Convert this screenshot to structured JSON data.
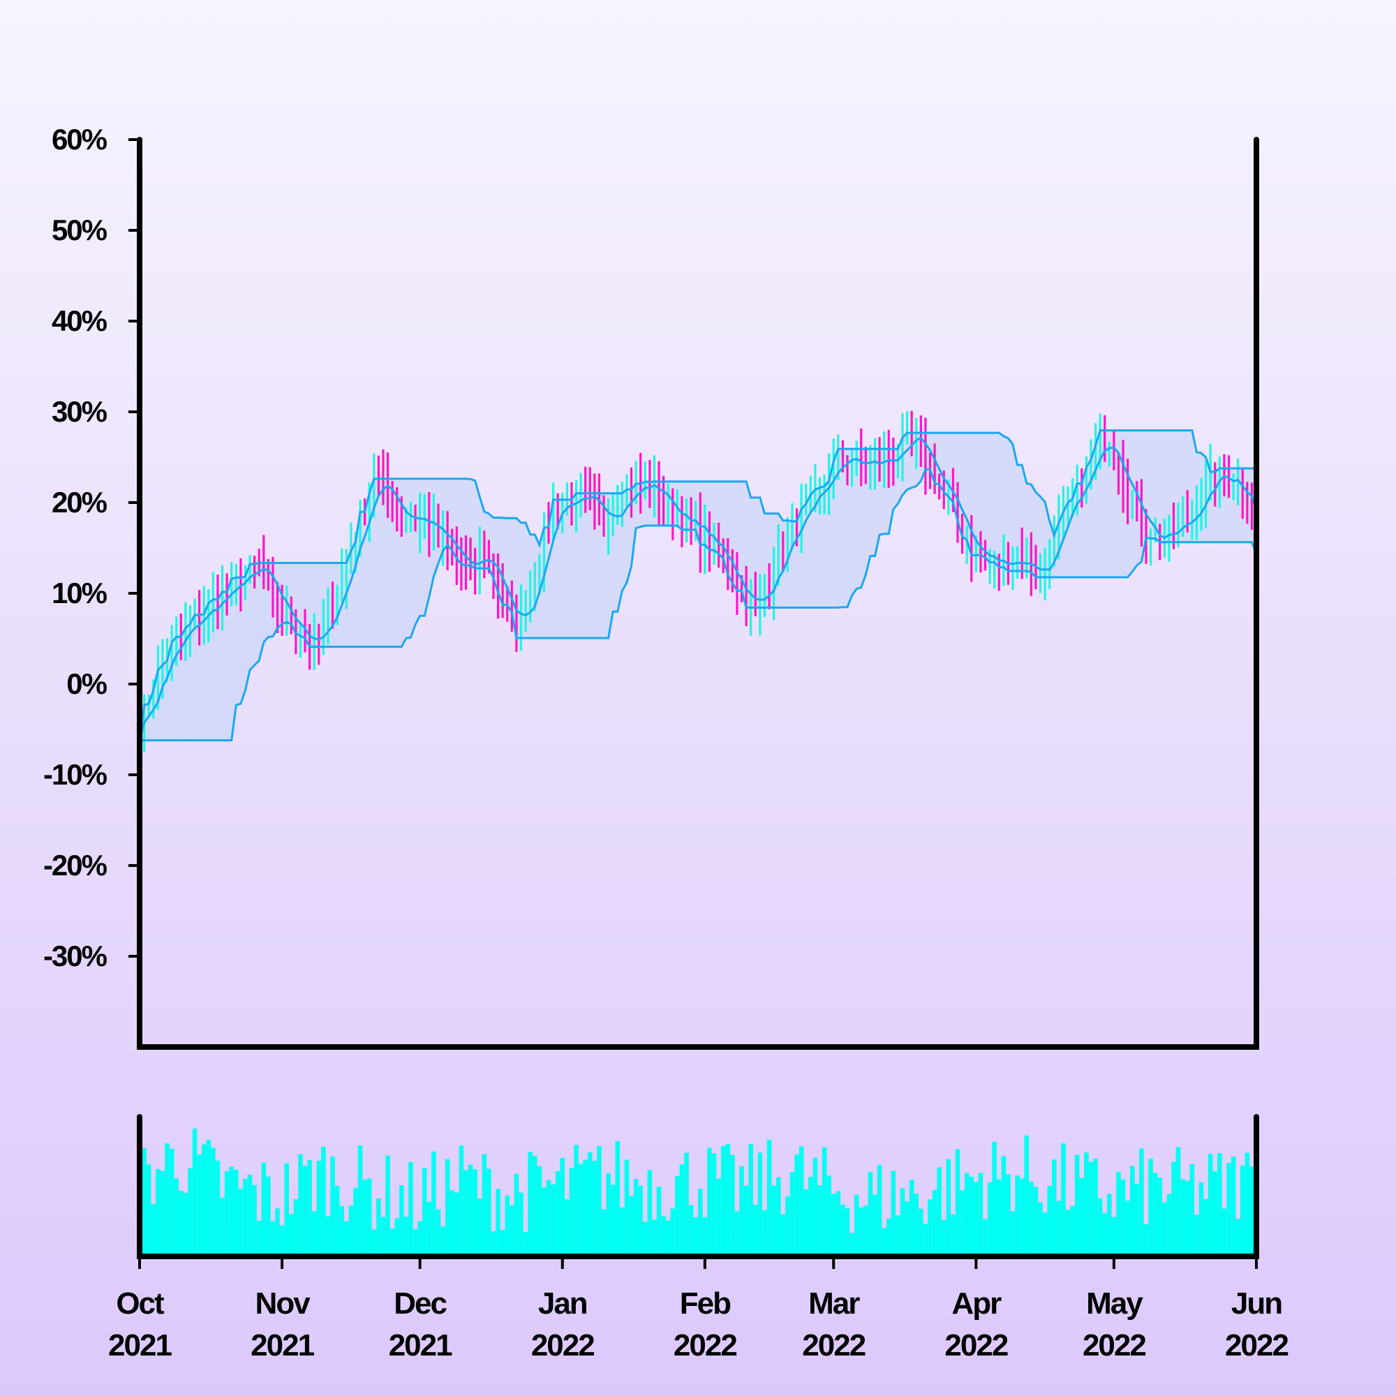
{
  "chart_data": {
    "type": "ohlc",
    "y_ticks": [
      "60%",
      "50%",
      "40%",
      "30%",
      "20%",
      "10%",
      "0%",
      "-10%",
      "-20%",
      "-30%"
    ],
    "y_tick_values": [
      60,
      50,
      40,
      30,
      20,
      10,
      0,
      -10,
      -20,
      -30
    ],
    "ylim": [
      -40,
      60
    ],
    "x_ticks": [
      {
        "month": "Oct",
        "year": "2021",
        "date": "2021-10-01"
      },
      {
        "month": "Nov",
        "year": "2021",
        "date": "2021-11-01"
      },
      {
        "month": "Dec",
        "year": "2021",
        "date": "2021-12-01"
      },
      {
        "month": "Jan",
        "year": "2022",
        "date": "2022-01-01"
      },
      {
        "month": "Feb",
        "year": "2022",
        "date": "2022-02-01"
      },
      {
        "month": "Mar",
        "year": "2022",
        "date": "2022-03-01"
      },
      {
        "month": "Apr",
        "year": "2022",
        "date": "2022-04-01"
      },
      {
        "month": "May",
        "year": "2022",
        "date": "2022-05-01"
      },
      {
        "month": "Jun",
        "year": "2022",
        "date": "2022-06-01"
      }
    ],
    "xlim": [
      "2021-10-01",
      "2022-06-01"
    ],
    "grid": false,
    "colors": {
      "up": "#1ff5e4",
      "down": "#ff14c8",
      "band_line": "#1aa8f0",
      "band_fill": "#c9d6f8",
      "volume": "#00fff2",
      "axis": "#000000"
    },
    "price_anchors": [
      [
        "2021-10-01",
        -5
      ],
      [
        "2021-10-04",
        0
      ],
      [
        "2021-10-08",
        4
      ],
      [
        "2021-10-15",
        8
      ],
      [
        "2021-10-22",
        11
      ],
      [
        "2021-10-27",
        13
      ],
      [
        "2021-10-30",
        9
      ],
      [
        "2021-11-03",
        7
      ],
      [
        "2021-11-08",
        4
      ],
      [
        "2021-11-11",
        7
      ],
      [
        "2021-11-18",
        18
      ],
      [
        "2021-11-21",
        23
      ],
      [
        "2021-11-26",
        19
      ],
      [
        "2021-12-02",
        18
      ],
      [
        "2021-12-07",
        15
      ],
      [
        "2021-12-12",
        12
      ],
      [
        "2021-12-15",
        15
      ],
      [
        "2021-12-19",
        9
      ],
      [
        "2021-12-22",
        6
      ],
      [
        "2021-12-26",
        12
      ],
      [
        "2021-12-30",
        20
      ],
      [
        "2022-01-06",
        20
      ],
      [
        "2022-01-10",
        18
      ],
      [
        "2022-01-14",
        21
      ],
      [
        "2022-01-20",
        22
      ],
      [
        "2022-01-25",
        19
      ],
      [
        "2022-01-30",
        17
      ],
      [
        "2022-02-03",
        15
      ],
      [
        "2022-02-08",
        11
      ],
      [
        "2022-02-12",
        8
      ],
      [
        "2022-02-16",
        13
      ],
      [
        "2022-02-20",
        17
      ],
      [
        "2022-02-26",
        21
      ],
      [
        "2022-03-02",
        25
      ],
      [
        "2022-03-08",
        24
      ],
      [
        "2022-03-14",
        25
      ],
      [
        "2022-03-18",
        27
      ],
      [
        "2022-03-23",
        23
      ],
      [
        "2022-03-27",
        19
      ],
      [
        "2022-03-31",
        15
      ],
      [
        "2022-04-05",
        13
      ],
      [
        "2022-04-10",
        14
      ],
      [
        "2022-04-15",
        12
      ],
      [
        "2022-04-19",
        17
      ],
      [
        "2022-04-24",
        22
      ],
      [
        "2022-04-28",
        27
      ],
      [
        "2022-05-01",
        26
      ],
      [
        "2022-05-04",
        21
      ],
      [
        "2022-05-08",
        17
      ],
      [
        "2022-05-12",
        16
      ],
      [
        "2022-05-17",
        18
      ],
      [
        "2022-05-21",
        22
      ],
      [
        "2022-05-25",
        23
      ],
      [
        "2022-05-28",
        22
      ],
      [
        "2022-05-31",
        20
      ],
      [
        "2022-06-01",
        14
      ]
    ],
    "volume_anchors": [
      [
        "2021-10-01",
        55
      ],
      [
        "2021-10-10",
        72
      ],
      [
        "2021-10-20",
        50
      ],
      [
        "2021-10-31",
        42
      ],
      [
        "2021-11-10",
        60
      ],
      [
        "2021-11-20",
        48
      ],
      [
        "2021-11-30",
        40
      ],
      [
        "2021-12-10",
        55
      ],
      [
        "2021-12-20",
        45
      ],
      [
        "2021-12-31",
        50
      ],
      [
        "2022-01-10",
        58
      ],
      [
        "2022-01-20",
        52
      ],
      [
        "2022-01-31",
        55
      ],
      [
        "2022-02-10",
        50
      ],
      [
        "2022-02-20",
        60
      ],
      [
        "2022-02-28",
        48
      ],
      [
        "2022-03-10",
        42
      ],
      [
        "2022-03-20",
        45
      ],
      [
        "2022-03-31",
        55
      ],
      [
        "2022-04-10",
        60
      ],
      [
        "2022-04-20",
        52
      ],
      [
        "2022-04-30",
        45
      ],
      [
        "2022-05-10",
        50
      ],
      [
        "2022-05-20",
        48
      ],
      [
        "2022-06-01",
        55
      ]
    ],
    "band_window_days": 21,
    "ma_window_days": 5,
    "random_seed": 7
  }
}
